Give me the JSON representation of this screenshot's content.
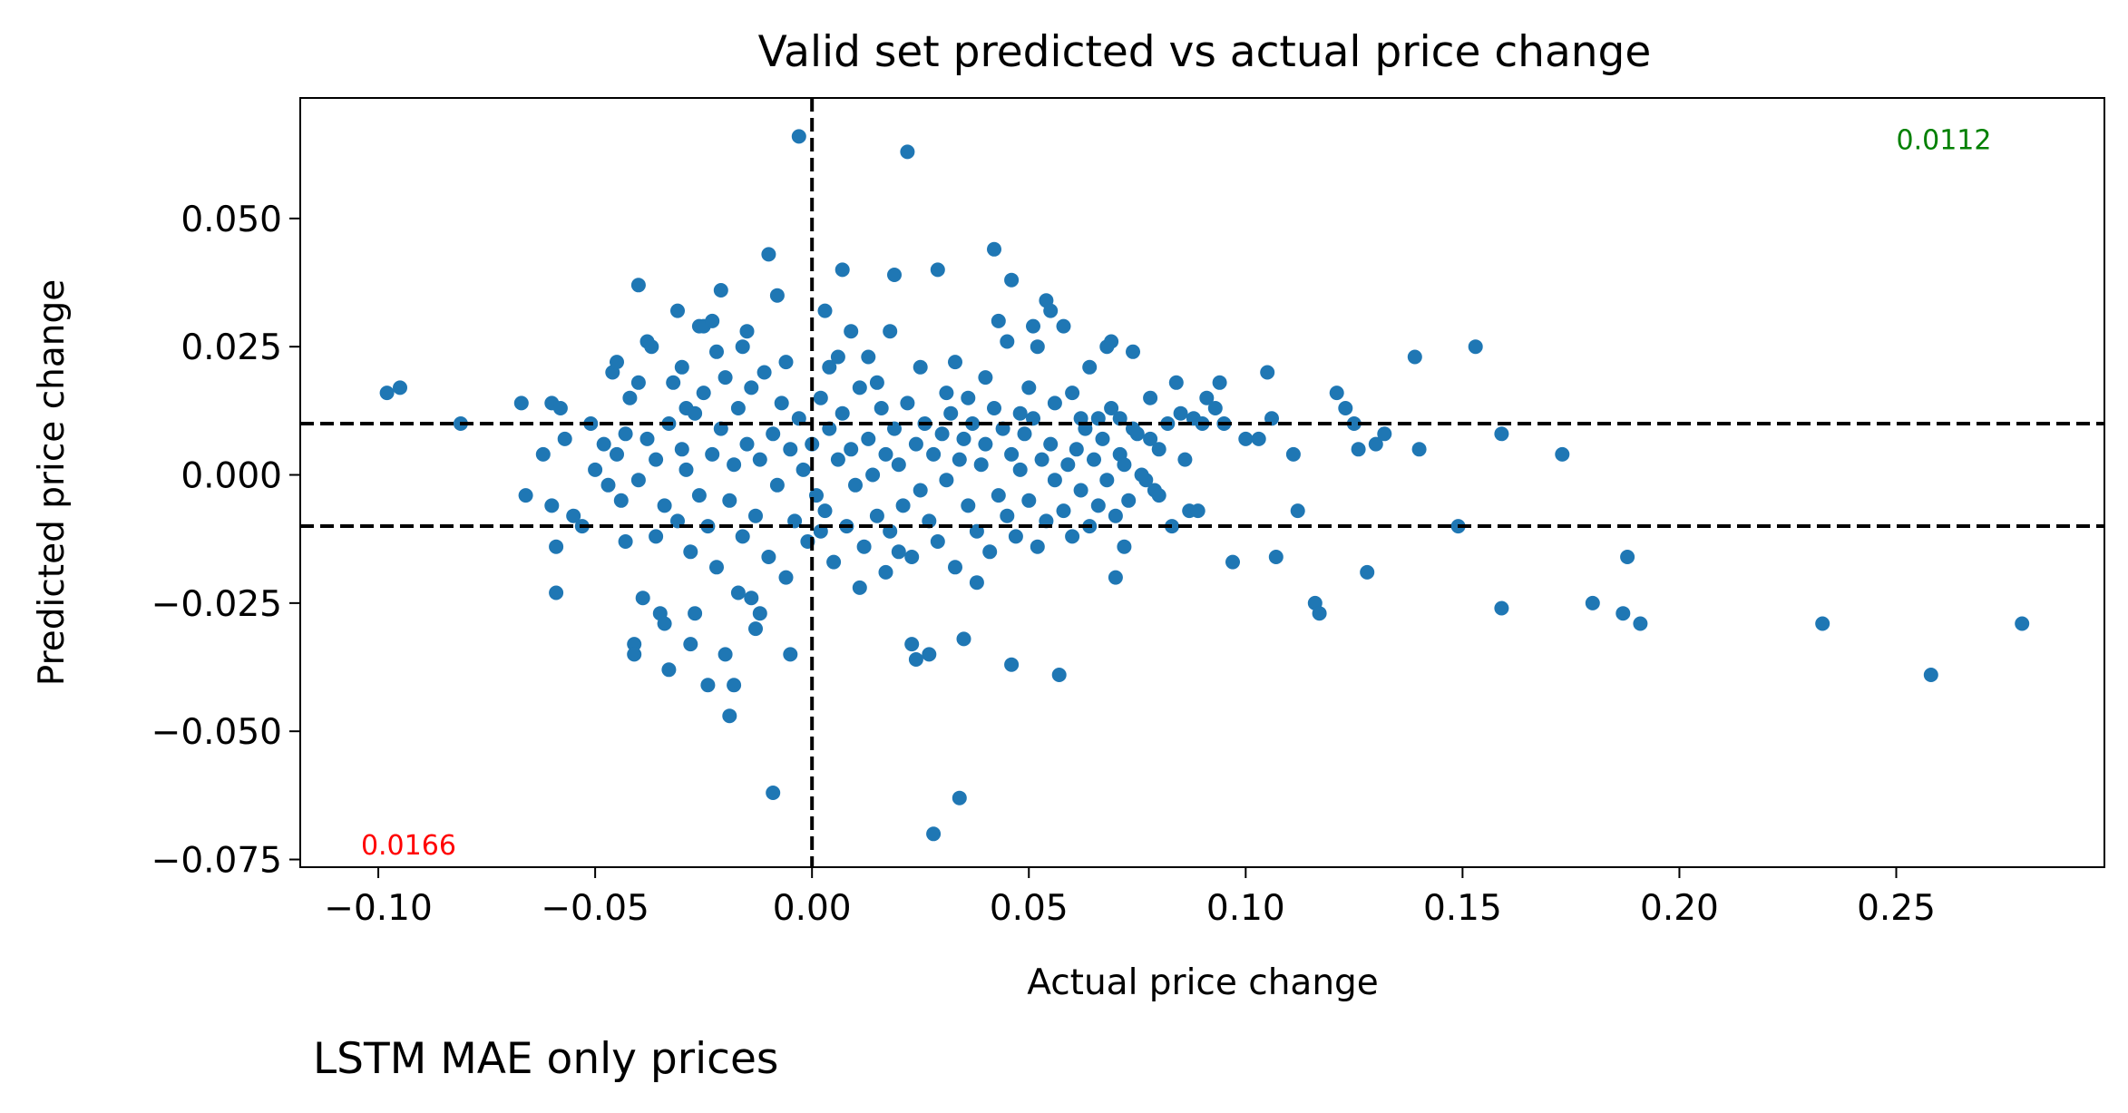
{
  "chart_data": {
    "type": "scatter",
    "title": "Valid set predicted vs actual price change",
    "xlabel": "Actual price change",
    "ylabel": "Predicted price change",
    "caption": "LSTM MAE only prices",
    "xlim": [
      -0.118,
      0.298
    ],
    "ylim": [
      -0.0765,
      0.0735
    ],
    "xticks": [
      -0.1,
      -0.05,
      0.0,
      0.05,
      0.1,
      0.15,
      0.2,
      0.25
    ],
    "xtick_labels": [
      "−0.10",
      "−0.05",
      "0.00",
      "0.05",
      "0.10",
      "0.15",
      "0.20",
      "0.25"
    ],
    "yticks": [
      -0.075,
      -0.05,
      -0.025,
      0.0,
      0.025,
      0.05
    ],
    "ytick_labels": [
      "−0.075",
      "−0.050",
      "−0.025",
      "0.000",
      "0.025",
      "0.050"
    ],
    "reference_lines": {
      "vertical_x": [
        0.0
      ],
      "horizontal_y": [
        0.01,
        -0.01
      ]
    },
    "annotations": [
      {
        "text": "0.0112",
        "x": 0.25,
        "y": 0.0635,
        "color": "#008000"
      },
      {
        "text": "0.0166",
        "x": -0.104,
        "y": -0.074,
        "color": "#ff0000"
      }
    ],
    "marker_color": "#1f77b4",
    "grid": false,
    "legend": "none",
    "points": [
      [
        -0.098,
        0.016
      ],
      [
        -0.095,
        0.017
      ],
      [
        -0.081,
        0.01
      ],
      [
        -0.067,
        0.014
      ],
      [
        -0.06,
        0.014
      ],
      [
        -0.058,
        0.013
      ],
      [
        -0.066,
        -0.004
      ],
      [
        -0.06,
        -0.006
      ],
      [
        -0.059,
        -0.014
      ],
      [
        -0.059,
        -0.023
      ],
      [
        -0.062,
        0.004
      ],
      [
        -0.057,
        0.007
      ],
      [
        -0.055,
        -0.008
      ],
      [
        -0.053,
        -0.01
      ],
      [
        -0.05,
        0.001
      ],
      [
        -0.048,
        0.006
      ],
      [
        -0.046,
        0.02
      ],
      [
        -0.045,
        0.022
      ],
      [
        -0.044,
        -0.005
      ],
      [
        -0.043,
        -0.013
      ],
      [
        -0.042,
        0.015
      ],
      [
        -0.041,
        -0.033
      ],
      [
        -0.041,
        -0.035
      ],
      [
        -0.04,
        0.037
      ],
      [
        -0.04,
        0.018
      ],
      [
        -0.039,
        -0.024
      ],
      [
        -0.038,
        0.026
      ],
      [
        -0.037,
        0.025
      ],
      [
        -0.036,
        -0.012
      ],
      [
        -0.035,
        -0.027
      ],
      [
        -0.034,
        -0.029
      ],
      [
        -0.033,
        -0.038
      ],
      [
        -0.032,
        0.018
      ],
      [
        -0.031,
        0.032
      ],
      [
        -0.03,
        0.021
      ],
      [
        -0.029,
        0.013
      ],
      [
        -0.028,
        -0.033
      ],
      [
        -0.027,
        -0.027
      ],
      [
        -0.026,
        0.029
      ],
      [
        -0.025,
        0.029
      ],
      [
        -0.024,
        -0.041
      ],
      [
        -0.023,
        0.03
      ],
      [
        -0.022,
        0.024
      ],
      [
        -0.021,
        0.036
      ],
      [
        -0.02,
        -0.035
      ],
      [
        -0.019,
        -0.047
      ],
      [
        -0.018,
        -0.041
      ],
      [
        -0.017,
        -0.023
      ],
      [
        -0.016,
        0.025
      ],
      [
        -0.015,
        0.028
      ],
      [
        -0.014,
        -0.024
      ],
      [
        -0.013,
        -0.03
      ],
      [
        -0.012,
        -0.027
      ],
      [
        -0.01,
        0.043
      ],
      [
        -0.009,
        -0.062
      ],
      [
        -0.008,
        0.035
      ],
      [
        -0.006,
        0.022
      ],
      [
        -0.005,
        -0.035
      ],
      [
        -0.003,
        0.066
      ],
      [
        0.002,
        -0.011
      ],
      [
        0.003,
        0.032
      ],
      [
        0.004,
        0.021
      ],
      [
        0.006,
        0.023
      ],
      [
        0.007,
        0.04
      ],
      [
        0.009,
        0.028
      ],
      [
        0.011,
        -0.022
      ],
      [
        0.013,
        0.023
      ],
      [
        0.015,
        0.018
      ],
      [
        0.017,
        -0.019
      ],
      [
        0.018,
        0.028
      ],
      [
        0.019,
        0.039
      ],
      [
        0.02,
        -0.015
      ],
      [
        0.022,
        0.063
      ],
      [
        0.023,
        -0.033
      ],
      [
        0.024,
        -0.036
      ],
      [
        0.025,
        0.021
      ],
      [
        0.027,
        -0.035
      ],
      [
        0.028,
        -0.07
      ],
      [
        0.029,
        0.04
      ],
      [
        0.031,
        0.016
      ],
      [
        0.033,
        0.022
      ],
      [
        0.034,
        -0.063
      ],
      [
        0.035,
        -0.032
      ],
      [
        0.036,
        0.015
      ],
      [
        0.038,
        -0.021
      ],
      [
        0.04,
        0.019
      ],
      [
        0.042,
        0.044
      ],
      [
        0.043,
        0.03
      ],
      [
        0.045,
        0.026
      ],
      [
        0.046,
        0.038
      ],
      [
        0.046,
        -0.037
      ],
      [
        0.048,
        0.012
      ],
      [
        0.05,
        0.017
      ],
      [
        0.051,
        0.029
      ],
      [
        0.052,
        0.025
      ],
      [
        0.054,
        0.034
      ],
      [
        0.055,
        0.032
      ],
      [
        0.056,
        -0.001
      ],
      [
        0.057,
        -0.039
      ],
      [
        0.058,
        0.029
      ],
      [
        0.06,
        0.016
      ],
      [
        0.062,
        0.011
      ],
      [
        0.064,
        0.021
      ],
      [
        0.066,
        0.011
      ],
      [
        0.068,
        0.025
      ],
      [
        0.069,
        0.026
      ],
      [
        0.07,
        -0.02
      ],
      [
        0.071,
        0.011
      ],
      [
        0.072,
        -0.014
      ],
      [
        0.074,
        0.024
      ],
      [
        0.075,
        0.008
      ],
      [
        0.077,
        -0.001
      ],
      [
        0.078,
        0.007
      ],
      [
        0.079,
        -0.003
      ],
      [
        0.08,
        0.005
      ],
      [
        0.082,
        0.01
      ],
      [
        0.084,
        0.018
      ],
      [
        0.085,
        0.012
      ],
      [
        0.087,
        -0.007
      ],
      [
        0.088,
        0.011
      ],
      [
        0.09,
        0.01
      ],
      [
        0.091,
        0.015
      ],
      [
        0.093,
        0.013
      ],
      [
        0.094,
        0.018
      ],
      [
        0.095,
        0.01
      ],
      [
        0.097,
        -0.017
      ],
      [
        0.1,
        0.007
      ],
      [
        0.103,
        0.007
      ],
      [
        0.105,
        0.02
      ],
      [
        0.106,
        0.011
      ],
      [
        0.107,
        -0.016
      ],
      [
        0.111,
        0.004
      ],
      [
        0.112,
        -0.007
      ],
      [
        0.116,
        -0.025
      ],
      [
        0.117,
        -0.027
      ],
      [
        0.121,
        0.016
      ],
      [
        0.123,
        0.013
      ],
      [
        0.125,
        0.01
      ],
      [
        0.126,
        0.005
      ],
      [
        0.128,
        -0.019
      ],
      [
        0.13,
        0.006
      ],
      [
        0.132,
        0.008
      ],
      [
        0.139,
        0.023
      ],
      [
        0.14,
        0.005
      ],
      [
        0.149,
        -0.01
      ],
      [
        0.153,
        0.025
      ],
      [
        0.159,
        0.008
      ],
      [
        0.159,
        -0.026
      ],
      [
        0.173,
        0.004
      ],
      [
        0.18,
        -0.025
      ],
      [
        0.187,
        -0.027
      ],
      [
        0.188,
        -0.016
      ],
      [
        0.191,
        -0.029
      ],
      [
        0.233,
        -0.029
      ],
      [
        0.258,
        -0.039
      ],
      [
        0.279,
        -0.029
      ],
      [
        -0.051,
        0.01
      ],
      [
        -0.047,
        -0.002
      ],
      [
        -0.045,
        0.004
      ],
      [
        -0.043,
        0.008
      ],
      [
        -0.04,
        -0.001
      ],
      [
        -0.038,
        0.007
      ],
      [
        -0.036,
        0.003
      ],
      [
        -0.034,
        -0.006
      ],
      [
        -0.033,
        0.01
      ],
      [
        -0.031,
        -0.009
      ],
      [
        -0.03,
        0.005
      ],
      [
        -0.029,
        0.001
      ],
      [
        -0.028,
        -0.015
      ],
      [
        -0.027,
        0.012
      ],
      [
        -0.026,
        -0.004
      ],
      [
        -0.025,
        0.016
      ],
      [
        -0.024,
        -0.01
      ],
      [
        -0.023,
        0.004
      ],
      [
        -0.022,
        -0.018
      ],
      [
        -0.021,
        0.009
      ],
      [
        -0.02,
        0.019
      ],
      [
        -0.019,
        -0.005
      ],
      [
        -0.018,
        0.002
      ],
      [
        -0.017,
        0.013
      ],
      [
        -0.016,
        -0.012
      ],
      [
        -0.015,
        0.006
      ],
      [
        -0.014,
        0.017
      ],
      [
        -0.013,
        -0.008
      ],
      [
        -0.012,
        0.003
      ],
      [
        -0.011,
        0.02
      ],
      [
        -0.01,
        -0.016
      ],
      [
        -0.009,
        0.008
      ],
      [
        -0.008,
        -0.002
      ],
      [
        -0.007,
        0.014
      ],
      [
        -0.006,
        -0.02
      ],
      [
        -0.005,
        0.005
      ],
      [
        -0.004,
        -0.009
      ],
      [
        -0.003,
        0.011
      ],
      [
        -0.002,
        0.001
      ],
      [
        -0.001,
        -0.013
      ],
      [
        0.0,
        0.006
      ],
      [
        0.001,
        -0.004
      ],
      [
        0.002,
        0.015
      ],
      [
        0.003,
        -0.007
      ],
      [
        0.004,
        0.009
      ],
      [
        0.005,
        -0.017
      ],
      [
        0.006,
        0.003
      ],
      [
        0.007,
        0.012
      ],
      [
        0.008,
        -0.01
      ],
      [
        0.009,
        0.005
      ],
      [
        0.01,
        -0.002
      ],
      [
        0.011,
        0.017
      ],
      [
        0.012,
        -0.014
      ],
      [
        0.013,
        0.007
      ],
      [
        0.014,
        0.0
      ],
      [
        0.015,
        -0.008
      ],
      [
        0.016,
        0.013
      ],
      [
        0.017,
        0.004
      ],
      [
        0.018,
        -0.011
      ],
      [
        0.019,
        0.009
      ],
      [
        0.02,
        0.002
      ],
      [
        0.021,
        -0.006
      ],
      [
        0.022,
        0.014
      ],
      [
        0.023,
        -0.016
      ],
      [
        0.024,
        0.006
      ],
      [
        0.025,
        -0.003
      ],
      [
        0.026,
        0.01
      ],
      [
        0.027,
        -0.009
      ],
      [
        0.028,
        0.004
      ],
      [
        0.029,
        -0.013
      ],
      [
        0.03,
        0.008
      ],
      [
        0.031,
        -0.001
      ],
      [
        0.032,
        0.012
      ],
      [
        0.033,
        -0.018
      ],
      [
        0.034,
        0.003
      ],
      [
        0.035,
        0.007
      ],
      [
        0.036,
        -0.006
      ],
      [
        0.037,
        0.01
      ],
      [
        0.038,
        -0.011
      ],
      [
        0.039,
        0.002
      ],
      [
        0.04,
        0.006
      ],
      [
        0.041,
        -0.015
      ],
      [
        0.042,
        0.013
      ],
      [
        0.043,
        -0.004
      ],
      [
        0.044,
        0.009
      ],
      [
        0.045,
        -0.008
      ],
      [
        0.046,
        0.004
      ],
      [
        0.047,
        -0.012
      ],
      [
        0.048,
        0.001
      ],
      [
        0.049,
        0.008
      ],
      [
        0.05,
        -0.005
      ],
      [
        0.051,
        0.011
      ],
      [
        0.052,
        -0.014
      ],
      [
        0.053,
        0.003
      ],
      [
        0.054,
        -0.009
      ],
      [
        0.055,
        0.006
      ],
      [
        0.056,
        0.014
      ],
      [
        0.058,
        -0.007
      ],
      [
        0.059,
        0.002
      ],
      [
        0.06,
        -0.012
      ],
      [
        0.061,
        0.005
      ],
      [
        0.062,
        -0.003
      ],
      [
        0.063,
        0.009
      ],
      [
        0.064,
        -0.01
      ],
      [
        0.065,
        0.003
      ],
      [
        0.066,
        -0.006
      ],
      [
        0.067,
        0.007
      ],
      [
        0.068,
        -0.001
      ],
      [
        0.069,
        0.013
      ],
      [
        0.07,
        -0.008
      ],
      [
        0.071,
        0.004
      ],
      [
        0.072,
        0.002
      ],
      [
        0.073,
        -0.005
      ],
      [
        0.074,
        0.009
      ],
      [
        0.076,
        0.0
      ],
      [
        0.078,
        0.015
      ],
      [
        0.08,
        -0.004
      ],
      [
        0.083,
        -0.01
      ],
      [
        0.086,
        0.003
      ],
      [
        0.089,
        -0.007
      ]
    ]
  }
}
